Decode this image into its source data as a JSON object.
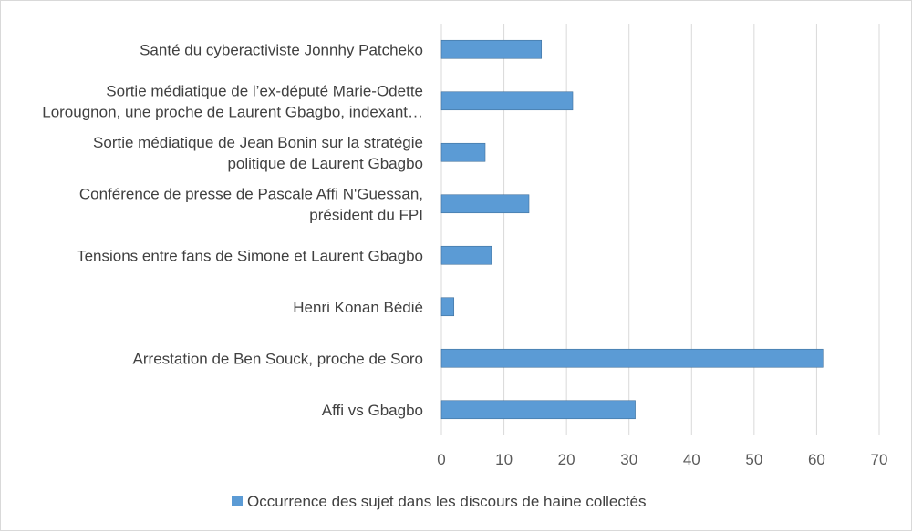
{
  "chart_data": {
    "type": "bar",
    "orientation": "horizontal",
    "categories": [
      [
        "Santé du cyberactiviste Jonnhy Patcheko"
      ],
      [
        "Sortie médiatique de l’ex-député Marie-Odette",
        "Lorougnon, une proche de Laurent Gbagbo, indexant…"
      ],
      [
        "Sortie médiatique de Jean Bonin sur la stratégie",
        "politique de Laurent Gbagbo"
      ],
      [
        "Conférence de presse de Pascale Affi N'Guessan,",
        "président du FPI"
      ],
      [
        "Tensions entre fans de Simone et Laurent Gbagbo"
      ],
      [
        "Henri Konan Bédié"
      ],
      [
        "Arrestation de Ben Souck, proche de Soro"
      ],
      [
        "Affi vs Gbagbo"
      ]
    ],
    "series": [
      {
        "name": "Occurrence des sujet dans les discours de haine collectés",
        "values": [
          16,
          21,
          7,
          14,
          8,
          2,
          61,
          31
        ]
      }
    ],
    "xlim": [
      0,
      70
    ],
    "xticks": [
      0,
      10,
      20,
      30,
      40,
      50,
      60,
      70
    ],
    "grid": "vertical",
    "legend": "bottom",
    "colors": {
      "bar": "#5b9bd5",
      "bar_edge": "#41719c",
      "grid": "#d9d9d9",
      "label": "#404040"
    }
  }
}
